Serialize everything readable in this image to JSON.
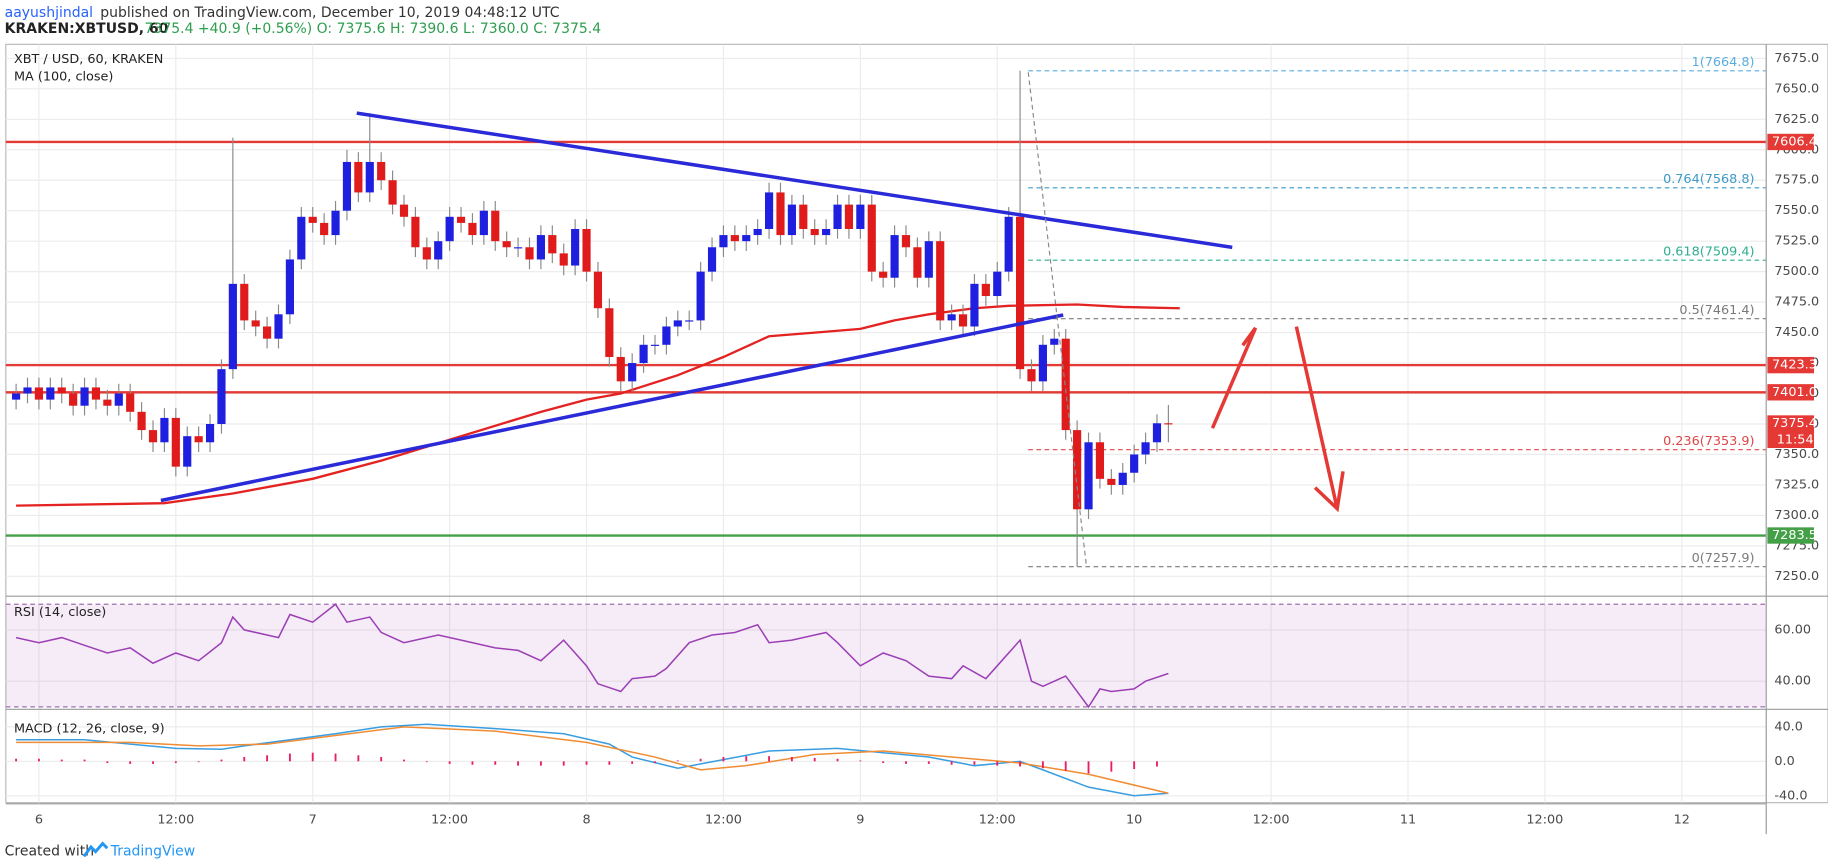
{
  "header": {
    "author": "aayushjindal",
    "published": "published on TradingView.com, December 10, 2019 04:48:12 UTC",
    "symbol": "KRAKEN:XBTUSD, 60",
    "quote": "7375.4 +40.9 (+0.56%) O: 7375.6 H: 7390.6 L: 7360.0 C: 7375.4"
  },
  "footer": {
    "created": "Created with",
    "brand": "TradingView"
  },
  "chart_data": [
    {
      "type": "candlestick",
      "title": "XBT / USD, 60, KRAKEN",
      "up_color": "#1f1fe0",
      "down_color": "#e01b1b",
      "xlim": [
        -2.9,
        151.4
      ],
      "xticks": [
        {
          "value": 0,
          "label": "6"
        },
        {
          "value": 12,
          "label": "12:00"
        },
        {
          "value": 24,
          "label": "7"
        },
        {
          "value": 36,
          "label": "12:00"
        },
        {
          "value": 48,
          "label": "8"
        },
        {
          "value": 60,
          "label": "12:00"
        },
        {
          "value": 72,
          "label": "9"
        },
        {
          "value": 84,
          "label": "12:00"
        },
        {
          "value": 96,
          "label": "10"
        },
        {
          "value": 108,
          "label": "12:00"
        },
        {
          "value": 120,
          "label": "11"
        },
        {
          "value": 132,
          "label": "12:00"
        },
        {
          "value": 144,
          "label": "12"
        }
      ],
      "ylim": [
        7234.7,
        7686.5
      ],
      "yticks": [
        {
          "value": 7250,
          "label": "7250.0"
        },
        {
          "value": 7275,
          "label": "7275.0"
        },
        {
          "value": 7300,
          "label": "7300.0"
        },
        {
          "value": 7325,
          "label": "7325.0"
        },
        {
          "value": 7350,
          "label": "7350.0"
        },
        {
          "value": 7375,
          "label": "7375.0"
        },
        {
          "value": 7400,
          "label": "7400.0"
        },
        {
          "value": 7425,
          "label": "7425.0"
        },
        {
          "value": 7450,
          "label": "7450.0"
        },
        {
          "value": 7475,
          "label": "7475.0"
        },
        {
          "value": 7500,
          "label": "7500.0"
        },
        {
          "value": 7525,
          "label": "7525.0"
        },
        {
          "value": 7550,
          "label": "7550.0"
        },
        {
          "value": 7575,
          "label": "7575.0"
        },
        {
          "value": 7600,
          "label": "7600.0"
        },
        {
          "value": 7625,
          "label": "7625.0"
        },
        {
          "value": 7650,
          "label": "7650.0"
        },
        {
          "value": 7675,
          "label": "7675.0"
        }
      ],
      "grid": true,
      "x": [
        -2,
        -1,
        0,
        1,
        2,
        3,
        4,
        5,
        6,
        7,
        8,
        9,
        10,
        11,
        12,
        13,
        14,
        15,
        16,
        17,
        18,
        19,
        20,
        21,
        22,
        23,
        24,
        25,
        26,
        27,
        28,
        29,
        30,
        31,
        32,
        33,
        34,
        35,
        36,
        37,
        38,
        39,
        40,
        41,
        42,
        43,
        44,
        45,
        46,
        47,
        48,
        49,
        50,
        51,
        52,
        53,
        54,
        55,
        56,
        57,
        58,
        59,
        60,
        61,
        62,
        63,
        64,
        65,
        66,
        67,
        68,
        69,
        70,
        71,
        72,
        73,
        74,
        75,
        76,
        77,
        78,
        79,
        80,
        81,
        82,
        83,
        84,
        85,
        86,
        87,
        88,
        89,
        90,
        91,
        92,
        93,
        94,
        95,
        96,
        97,
        98,
        99
      ],
      "open": [
        7395,
        7400,
        7405,
        7395,
        7405,
        7400,
        7390,
        7405,
        7395,
        7390,
        7400,
        7385,
        7370,
        7360,
        7380,
        7340,
        7365,
        7360,
        7375,
        7420,
        7490,
        7460,
        7455,
        7445,
        7465,
        7510,
        7545,
        7540,
        7530,
        7550,
        7590,
        7565,
        7590,
        7575,
        7555,
        7545,
        7520,
        7510,
        7525,
        7545,
        7540,
        7530,
        7550,
        7525,
        7520,
        7520,
        7510,
        7530,
        7515,
        7505,
        7535,
        7500,
        7470,
        7430,
        7410,
        7425,
        7440,
        7440,
        7455,
        7460,
        7460,
        7500,
        7520,
        7530,
        7525,
        7530,
        7535,
        7565,
        7530,
        7555,
        7535,
        7530,
        7535,
        7555,
        7535,
        7555,
        7500,
        7495,
        7530,
        7520,
        7495,
        7525,
        7460,
        7465,
        7455,
        7490,
        7480,
        7500,
        7545,
        7420,
        7410,
        7440,
        7445,
        7370,
        7305,
        7360,
        7330,
        7325,
        7335,
        7350,
        7360,
        7375.6
      ],
      "high": [
        7408,
        7413,
        7413,
        7413,
        7413,
        7408,
        7413,
        7413,
        7403,
        7408,
        7408,
        7393,
        7378,
        7388,
        7388,
        7373,
        7373,
        7383,
        7428,
        7610,
        7498,
        7468,
        7463,
        7473,
        7518,
        7553,
        7553,
        7548,
        7558,
        7600,
        7598,
        7630,
        7598,
        7583,
        7563,
        7553,
        7528,
        7533,
        7553,
        7553,
        7548,
        7558,
        7558,
        7533,
        7528,
        7528,
        7538,
        7538,
        7523,
        7543,
        7543,
        7508,
        7478,
        7438,
        7433,
        7448,
        7448,
        7463,
        7468,
        7468,
        7508,
        7528,
        7538,
        7538,
        7538,
        7543,
        7573,
        7573,
        7563,
        7563,
        7543,
        7543,
        7563,
        7563,
        7563,
        7563,
        7508,
        7538,
        7538,
        7528,
        7533,
        7533,
        7473,
        7473,
        7498,
        7498,
        7508,
        7553,
        7664.8,
        7428,
        7448,
        7453,
        7453,
        7378,
        7368,
        7368,
        7338,
        7343,
        7358,
        7368,
        7383,
        7390.6
      ],
      "low": [
        7387,
        7392,
        7387,
        7387,
        7392,
        7382,
        7382,
        7387,
        7382,
        7382,
        7377,
        7362,
        7352,
        7352,
        7332,
        7332,
        7352,
        7352,
        7367,
        7412,
        7452,
        7447,
        7437,
        7437,
        7457,
        7502,
        7532,
        7522,
        7522,
        7542,
        7557,
        7557,
        7567,
        7547,
        7537,
        7512,
        7502,
        7502,
        7517,
        7532,
        7522,
        7522,
        7517,
        7512,
        7512,
        7502,
        7502,
        7507,
        7497,
        7497,
        7492,
        7462,
        7422,
        7402,
        7402,
        7417,
        7432,
        7432,
        7447,
        7452,
        7452,
        7492,
        7512,
        7517,
        7517,
        7522,
        7527,
        7522,
        7522,
        7527,
        7522,
        7522,
        7527,
        7527,
        7527,
        7492,
        7487,
        7487,
        7512,
        7487,
        7487,
        7452,
        7452,
        7447,
        7447,
        7472,
        7472,
        7492,
        7412,
        7402,
        7402,
        7432,
        7362,
        7257.9,
        7297,
        7322,
        7317,
        7317,
        7327,
        7342,
        7352,
        7360
      ],
      "close": [
        7400,
        7405,
        7395,
        7405,
        7400,
        7390,
        7405,
        7395,
        7390,
        7400,
        7385,
        7370,
        7360,
        7380,
        7340,
        7365,
        7360,
        7375,
        7420,
        7490,
        7460,
        7455,
        7445,
        7465,
        7510,
        7545,
        7540,
        7530,
        7550,
        7590,
        7565,
        7590,
        7575,
        7555,
        7545,
        7520,
        7510,
        7525,
        7545,
        7540,
        7530,
        7550,
        7525,
        7520,
        7520,
        7510,
        7530,
        7515,
        7505,
        7535,
        7500,
        7470,
        7430,
        7410,
        7425,
        7440,
        7440,
        7455,
        7460,
        7460,
        7500,
        7520,
        7530,
        7525,
        7530,
        7535,
        7565,
        7530,
        7555,
        7535,
        7530,
        7535,
        7555,
        7535,
        7555,
        7500,
        7495,
        7530,
        7520,
        7495,
        7525,
        7460,
        7465,
        7455,
        7490,
        7480,
        7500,
        7545,
        7420,
        7410,
        7440,
        7445,
        7370,
        7305,
        7360,
        7330,
        7325,
        7335,
        7350,
        7360,
        7375.6,
        7375.4
      ],
      "ma": {
        "name": "MA (100, close)",
        "color": "#e52222",
        "x": [
          -2,
          11,
          17,
          24,
          30,
          37,
          44,
          48,
          51,
          56,
          60,
          64,
          68,
          72,
          75,
          78,
          82,
          85,
          91,
          95,
          100
        ],
        "values": [
          7308,
          7310,
          7318,
          7330,
          7345,
          7365,
          7385,
          7395,
          7400,
          7415,
          7430,
          7447,
          7450,
          7453,
          7460,
          7465,
          7470,
          7472,
          7473,
          7471,
          7470
        ]
      },
      "hlines": [
        {
          "value": 7606.4,
          "color": "#e53935"
        },
        {
          "value": 7423.3,
          "color": "#e53935"
        },
        {
          "value": 7401,
          "label": "7401.0",
          "color": "#e53935"
        },
        {
          "value": 7283.5,
          "color": "#43a047"
        }
      ],
      "last": {
        "value": 7375.4,
        "countdown": "11:54",
        "color": "#e53935"
      },
      "fib": [
        {
          "value": 7664.8,
          "label": "1(7664.8)",
          "color": "#5aaede"
        },
        {
          "value": 7568.8,
          "label": "0.764(7568.8)",
          "color": "#3d9ac9"
        },
        {
          "value": 7509.4,
          "label": "0.618(7509.4)",
          "color": "#2fae8f"
        },
        {
          "value": 7461.4,
          "label": "0.5(7461.4)",
          "color": "#7a7a7a"
        },
        {
          "value": 7353.9,
          "label": "0.236(7353.9)",
          "color": "#e04545"
        },
        {
          "value": 7257.9,
          "label": "0(7257.9)",
          "color": "#7a7a7a"
        }
      ]
    },
    {
      "type": "line",
      "title": "RSI (14, close)",
      "color": "#9c3fb5",
      "xlim": [
        -2.9,
        151.4
      ],
      "ylim": [
        29.5,
        72.7
      ],
      "yticks": [
        {
          "value": 40,
          "label": "40.00"
        },
        {
          "value": 60,
          "label": "60.00"
        }
      ],
      "band": [
        30,
        70
      ],
      "x": [
        -2,
        0,
        2,
        4,
        6,
        8,
        10,
        12,
        14,
        16,
        17,
        18,
        21,
        22,
        24,
        26,
        27,
        29,
        30,
        32,
        35,
        37,
        40,
        42,
        44,
        46,
        48,
        49,
        51,
        52,
        54,
        55,
        57,
        59,
        61,
        63,
        64,
        66,
        69,
        70,
        72,
        74,
        76,
        78,
        80,
        81,
        83,
        84,
        86,
        87,
        88,
        90,
        91,
        92,
        93,
        94,
        96,
        97,
        99
      ],
      "values": [
        57,
        55,
        57,
        54,
        51,
        53,
        47,
        51,
        48,
        55,
        65,
        60,
        57,
        66,
        63,
        70,
        63,
        65,
        59,
        55,
        58,
        56,
        53,
        52,
        48,
        56,
        46,
        39,
        36,
        41,
        42,
        45,
        55,
        58,
        59,
        62,
        55,
        56,
        59,
        55,
        46,
        51,
        48,
        42,
        41,
        46,
        41,
        46,
        56,
        40,
        38,
        42,
        36,
        30,
        37,
        36,
        37,
        40,
        43
      ]
    },
    {
      "type": "combo",
      "title": "MACD (12, 26, close, 9)",
      "xlim": [
        -2.9,
        151.4
      ],
      "ylim": [
        -48,
        59
      ],
      "yticks": [
        {
          "value": -40,
          "label": "-40.0"
        },
        {
          "value": 0,
          "label": "0.0"
        },
        {
          "value": 40,
          "label": "40.0"
        }
      ],
      "series": [
        {
          "type": "line",
          "color": "#3a9de0",
          "x": [
            -2,
            4,
            8,
            12,
            16,
            18,
            22,
            26,
            30,
            34,
            40,
            46,
            50,
            52,
            56,
            60,
            64,
            70,
            74,
            78,
            82,
            86,
            88,
            92,
            96,
            99
          ],
          "values": [
            25,
            25,
            20,
            15,
            14,
            18,
            25,
            32,
            40,
            43,
            38,
            32,
            20,
            5,
            -8,
            2,
            12,
            15,
            10,
            5,
            -5,
            0,
            -10,
            -30,
            -40,
            -37
          ]
        },
        {
          "type": "line",
          "color": "#f08c33",
          "x": [
            -2,
            8,
            14,
            20,
            26,
            32,
            40,
            48,
            54,
            58,
            62,
            68,
            74,
            80,
            86,
            92,
            99
          ],
          "values": [
            22,
            22,
            18,
            20,
            30,
            40,
            35,
            22,
            5,
            -10,
            -5,
            8,
            12,
            5,
            -2,
            -15,
            -37
          ]
        },
        {
          "type": "bar",
          "color": "#e91e63",
          "x": [
            -2,
            0,
            2,
            4,
            6,
            8,
            10,
            12,
            14,
            16,
            18,
            20,
            22,
            24,
            26,
            28,
            30,
            32,
            34,
            36,
            38,
            40,
            42,
            44,
            46,
            48,
            50,
            52,
            54,
            56,
            58,
            60,
            62,
            64,
            66,
            68,
            70,
            72,
            74,
            76,
            78,
            80,
            82,
            84,
            86,
            88,
            90,
            92,
            94,
            96,
            98
          ],
          "values": [
            3,
            3,
            2,
            2,
            -2,
            -3,
            -3,
            -2,
            -1,
            2,
            5,
            7,
            9,
            10,
            9,
            7,
            5,
            2,
            -1,
            -3,
            -4,
            -4,
            -5,
            -5,
            -5,
            -4,
            -4,
            -3,
            -2,
            1,
            3,
            5,
            6,
            6,
            5,
            4,
            3,
            1,
            -2,
            -3,
            -3,
            -4,
            -4,
            -5,
            -6,
            -8,
            -11,
            -14,
            -12,
            -9,
            -6
          ]
        }
      ]
    }
  ]
}
